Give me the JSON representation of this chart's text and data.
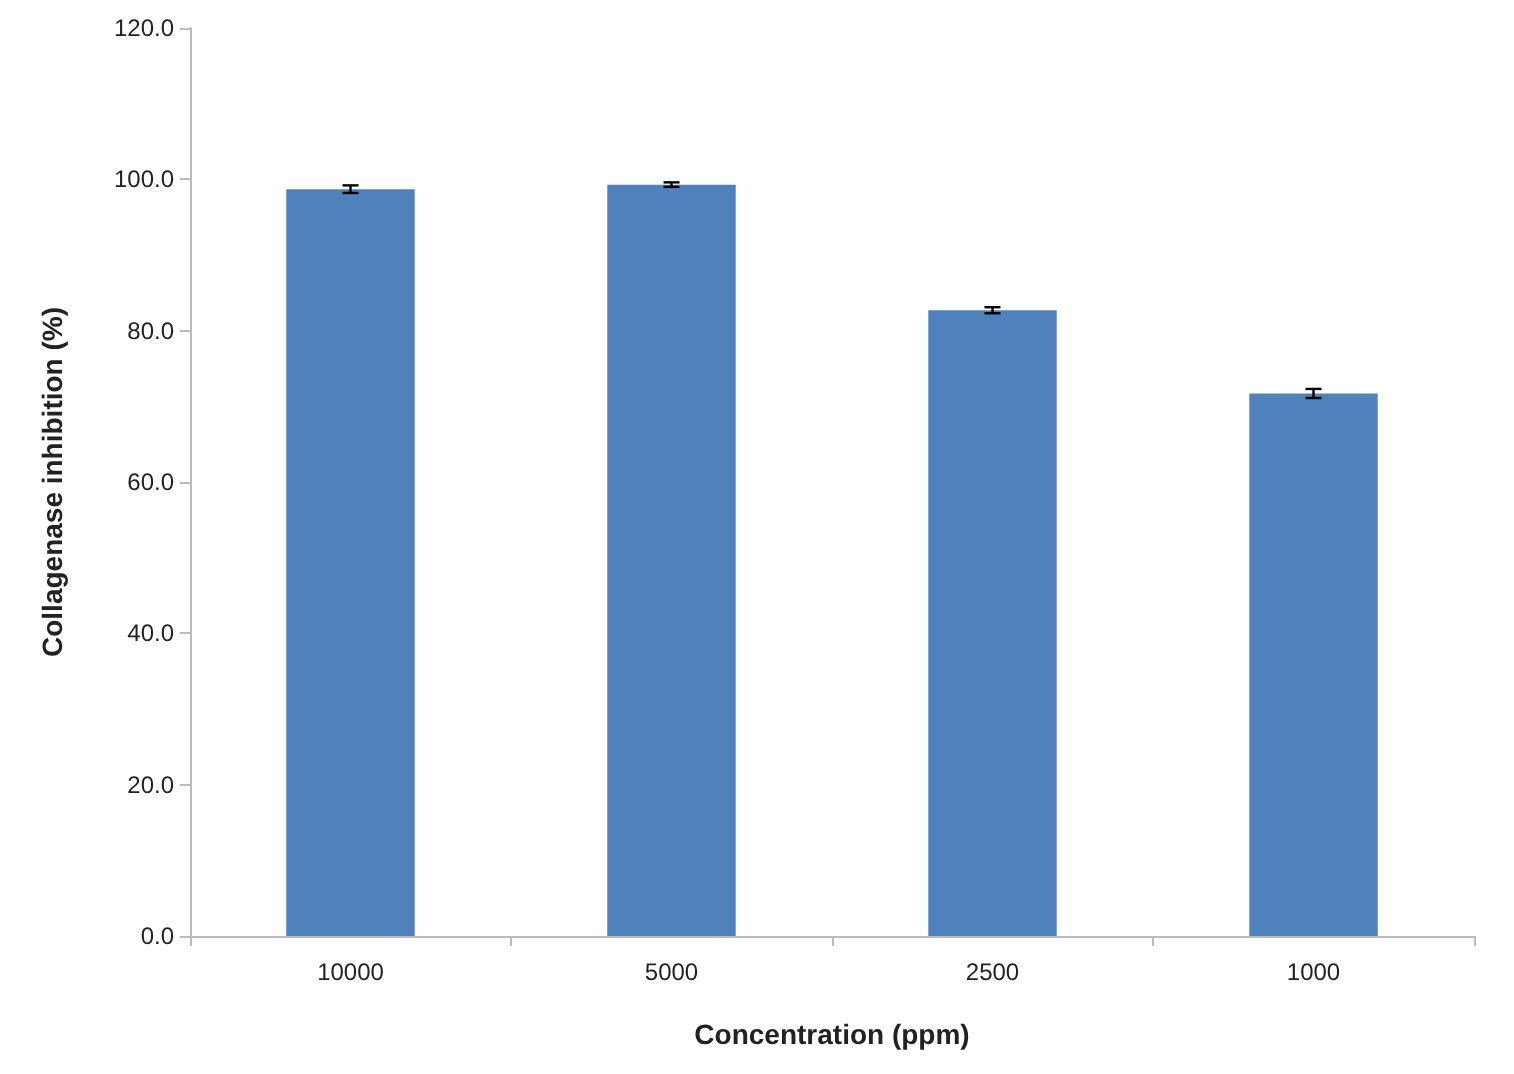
{
  "chart_data": {
    "type": "bar",
    "xlabel": "Concentration (ppm)",
    "ylabel": "Collagenase inhibition (%)",
    "categories": [
      "10000",
      "5000",
      "2500",
      "1000"
    ],
    "values": [
      98.7,
      99.3,
      82.7,
      71.7
    ],
    "errors": [
      0.5,
      0.3,
      0.4,
      0.6
    ],
    "color": "#4f81bd",
    "ylim": [
      0,
      120
    ],
    "yticks": [
      {
        "value": 0,
        "label": "0.0"
      },
      {
        "value": 20,
        "label": "20.0"
      },
      {
        "value": 40,
        "label": "40.0"
      },
      {
        "value": 60,
        "label": "60.0"
      },
      {
        "value": 80,
        "label": "80.0"
      },
      {
        "value": 100,
        "label": "100.0"
      },
      {
        "value": 120,
        "label": "120.0"
      }
    ],
    "grid": false
  }
}
